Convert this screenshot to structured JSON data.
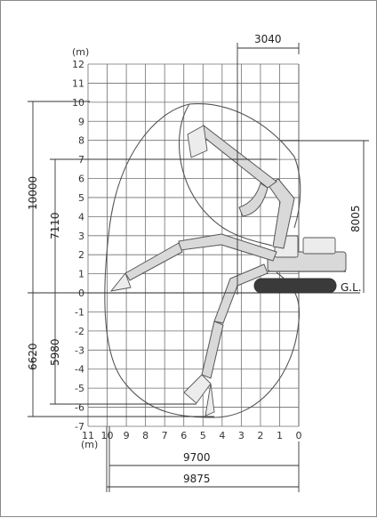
{
  "axes": {
    "unit_label_top": "(m)",
    "unit_label_bottom": "(m)",
    "y_ticks": [
      "12",
      "11",
      "10",
      "9",
      "8",
      "7",
      "6",
      "5",
      "4",
      "3",
      "2",
      "1",
      "0",
      "-1",
      "-2",
      "-3",
      "-4",
      "-5",
      "-6",
      "-7"
    ],
    "x_ticks": [
      "11",
      "10",
      "9",
      "8",
      "7",
      "6",
      "5",
      "4",
      "3",
      "2",
      "1",
      "0"
    ]
  },
  "dimensions": {
    "top_offset": "3040",
    "left_total_height": "10000",
    "left_inner_height": "7110",
    "left_total_depth": "6620",
    "left_inner_depth": "5980",
    "right_height": "8005",
    "bottom_reach_1": "9700",
    "bottom_reach_2": "9875",
    "ground_label": "G.L."
  }
}
